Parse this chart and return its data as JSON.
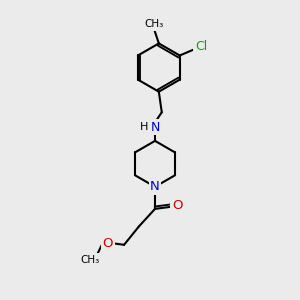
{
  "background_color": "#ebebeb",
  "bond_color": "#000000",
  "bond_width": 1.5,
  "atom_colors": {
    "C": "#000000",
    "N": "#0000cc",
    "O": "#cc0000",
    "Cl": "#00aa00",
    "H": "#000000"
  },
  "font_size": 8.5
}
